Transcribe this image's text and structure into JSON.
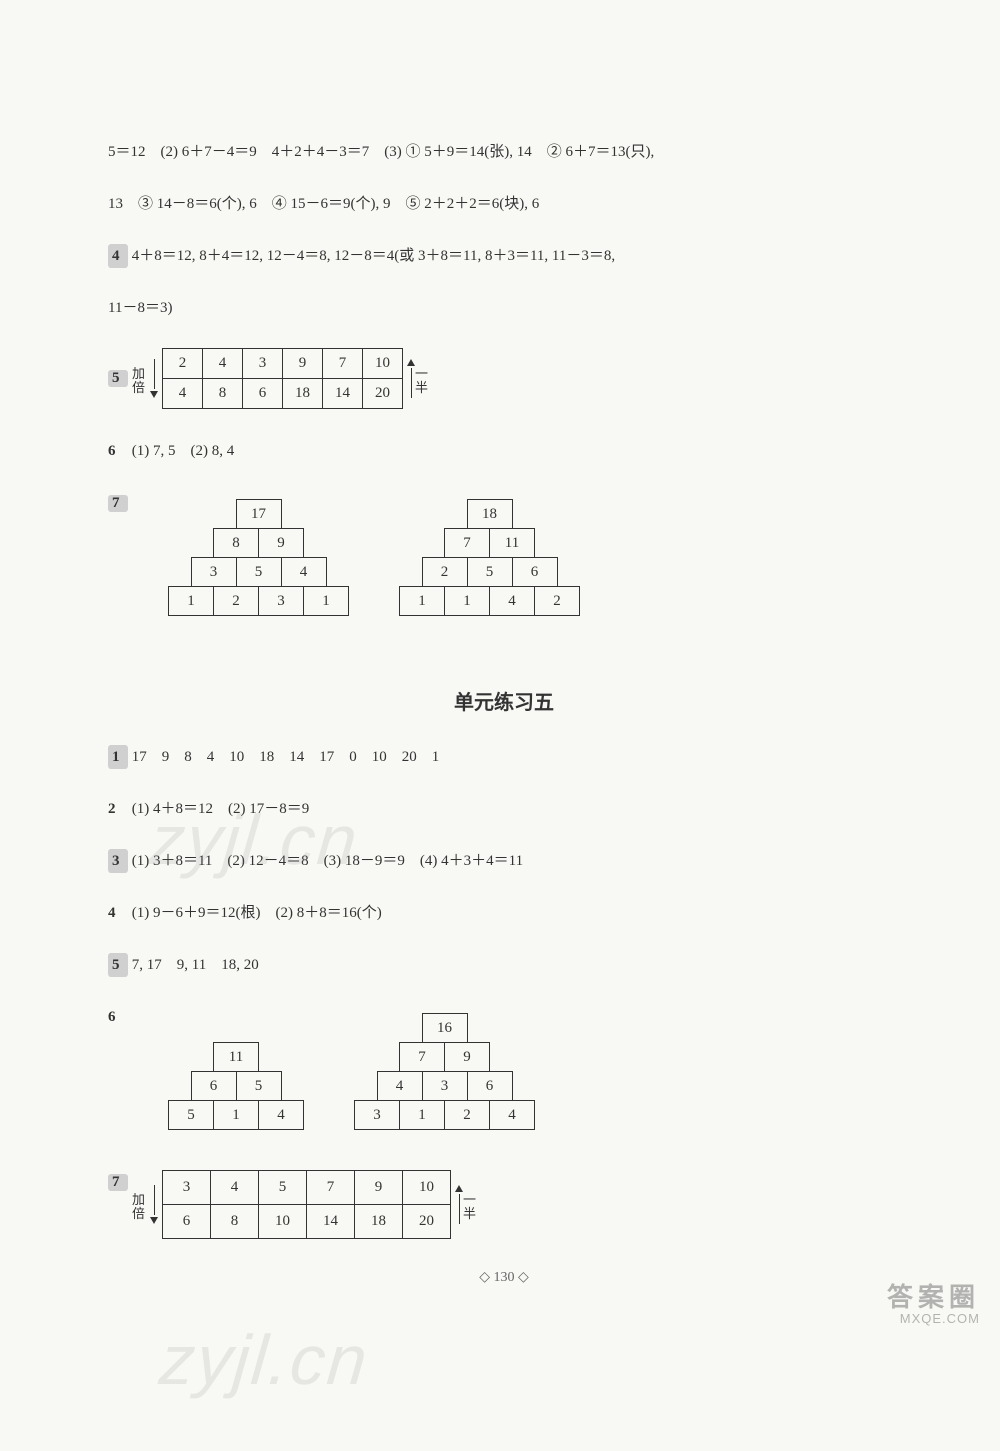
{
  "top_lines": [
    "5＝12　(2) 6＋7－4＝9　4＋2＋4－3＝7　(3) ① 5＋9＝14(张), 14　② 6＋7＝13(只),",
    "13　③ 14－8＝6(个), 6　④ 15－6＝9(个), 9　⑤ 2＋2＋2＝6(块), 6"
  ],
  "q4_top": {
    "num": "4",
    "text": "4＋8＝12, 8＋4＝12, 12－4＝8, 12－8＝4(或 3＋8＝11, 8＋3＝11, 11－3＝8,",
    "cont": "11－8＝3)"
  },
  "q5_top": {
    "num": "5",
    "left_label_a": "加",
    "left_label_b": "倍",
    "right_label_a": "一",
    "right_label_b": "半",
    "row1": [
      "2",
      "4",
      "3",
      "9",
      "7",
      "10"
    ],
    "row2": [
      "4",
      "8",
      "6",
      "18",
      "14",
      "20"
    ]
  },
  "q6_top": {
    "num": "6",
    "text": "(1) 7, 5　(2) 8, 4"
  },
  "q7_top": {
    "num": "7",
    "p1": [
      [
        "17"
      ],
      [
        "8",
        "9"
      ],
      [
        "3",
        "5",
        "4"
      ],
      [
        "1",
        "2",
        "3",
        "1"
      ]
    ],
    "p2": [
      [
        "18"
      ],
      [
        "7",
        "11"
      ],
      [
        "2",
        "5",
        "6"
      ],
      [
        "1",
        "1",
        "4",
        "2"
      ]
    ]
  },
  "section_title": "单元练习五",
  "u5_q1": {
    "num": "1",
    "text": "17　9　8　4　10　18　14　17　0　10　20　1"
  },
  "u5_q2": {
    "num": "2",
    "text": "(1) 4＋8＝12　(2) 17－8＝9"
  },
  "u5_q3": {
    "num": "3",
    "text": "(1) 3＋8＝11　(2) 12－4＝8　(3) 18－9＝9　(4) 4＋3＋4＝11"
  },
  "u5_q4": {
    "num": "4",
    "text": "(1) 9－6＋9＝12(根)　(2) 8＋8＝16(个)"
  },
  "u5_q5": {
    "num": "5",
    "text": "7, 17　9, 11　18, 20"
  },
  "u5_q6": {
    "num": "6",
    "p1": [
      [
        "11"
      ],
      [
        "6",
        "5"
      ],
      [
        "5",
        "1",
        "4"
      ]
    ],
    "p2": [
      [
        "16"
      ],
      [
        "7",
        "9"
      ],
      [
        "4",
        "3",
        "6"
      ],
      [
        "3",
        "1",
        "2",
        "4"
      ]
    ]
  },
  "u5_q7": {
    "num": "7",
    "left_label_a": "加",
    "left_label_b": "倍",
    "right_label_a": "一",
    "right_label_b": "半",
    "row1": [
      "3",
      "4",
      "5",
      "7",
      "9",
      "10"
    ],
    "row2": [
      "6",
      "8",
      "10",
      "14",
      "18",
      "20"
    ]
  },
  "page_number": "130",
  "wm1": "zyjl.cn",
  "wm2": "zyjl.cn",
  "brand_big": "答案圈",
  "brand_small": "MXQE.COM"
}
